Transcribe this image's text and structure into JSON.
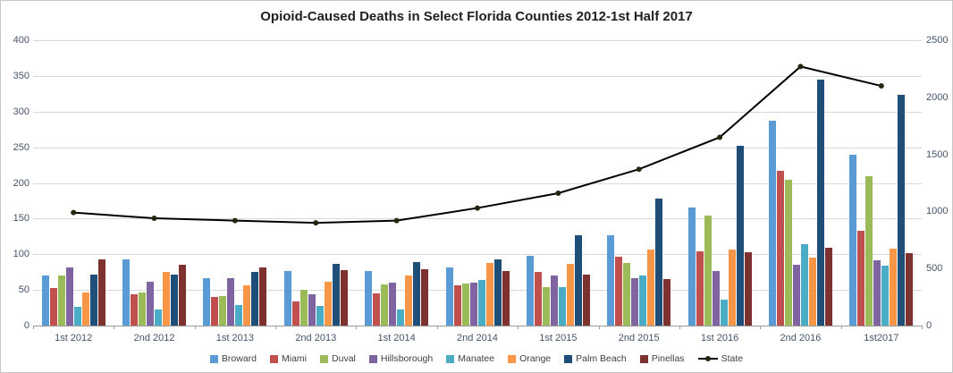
{
  "title": "Opioid-Caused Deaths in Select Florida Counties 2012-1st Half 2017",
  "chart_data": {
    "type": "bar+line",
    "title": "Opioid-Caused Deaths in Select Florida Counties 2012-1st Half 2017",
    "grid": true,
    "legend_position": "bottom",
    "categories": [
      "1st 2012",
      "2nd 2012",
      "1st 2013",
      "2nd 2013",
      "1st 2014",
      "2nd 2014",
      "1st 2015",
      "2nd 2015",
      "1st 2016",
      "2nd 2016",
      "1st2017"
    ],
    "left_axis": {
      "min": 0,
      "max": 400,
      "ticks": [
        0,
        50,
        100,
        150,
        200,
        250,
        300,
        350,
        400
      ]
    },
    "right_axis": {
      "min": 0,
      "max": 2500,
      "ticks": [
        0,
        500,
        1000,
        1500,
        2000,
        2500
      ]
    },
    "series": [
      {
        "name": "Broward",
        "color": "#5b9bd5",
        "values": [
          70,
          93,
          67,
          77,
          77,
          82,
          98,
          127,
          166,
          287,
          239
        ]
      },
      {
        "name": "Miami",
        "color": "#c0504d",
        "values": [
          53,
          44,
          40,
          34,
          45,
          57,
          75,
          96,
          104,
          217,
          133
        ]
      },
      {
        "name": "Duval",
        "color": "#9bbb59",
        "values": [
          70,
          46,
          42,
          50,
          58,
          59,
          54,
          88,
          154,
          205,
          210
        ]
      },
      {
        "name": "Hillsborough",
        "color": "#8064a2",
        "values": [
          81,
          62,
          67,
          44,
          60,
          60,
          70,
          67,
          76,
          85,
          92
        ]
      },
      {
        "name": "Manatee",
        "color": "#4bacc6",
        "values": [
          26,
          22,
          29,
          27,
          22,
          64,
          54,
          70,
          36,
          114,
          84
        ]
      },
      {
        "name": "Orange",
        "color": "#f79646",
        "values": [
          46,
          75,
          57,
          62,
          70,
          88,
          87,
          106,
          106,
          95,
          108
        ]
      },
      {
        "name": "Palm Beach",
        "color": "#1f4e79",
        "values": [
          71,
          72,
          75,
          87,
          89,
          93,
          127,
          178,
          252,
          345,
          323
        ]
      },
      {
        "name": "Pinellas",
        "color": "#7e322f",
        "values": [
          93,
          85,
          81,
          78,
          79,
          76,
          72,
          65,
          103,
          109,
          102
        ]
      }
    ],
    "line_series": {
      "name": "State",
      "axis": "right",
      "color": "#000000",
      "marker_color": "#26260f",
      "values": [
        990,
        940,
        920,
        900,
        920,
        1030,
        1160,
        1370,
        1650,
        2270,
        2100
      ]
    }
  }
}
